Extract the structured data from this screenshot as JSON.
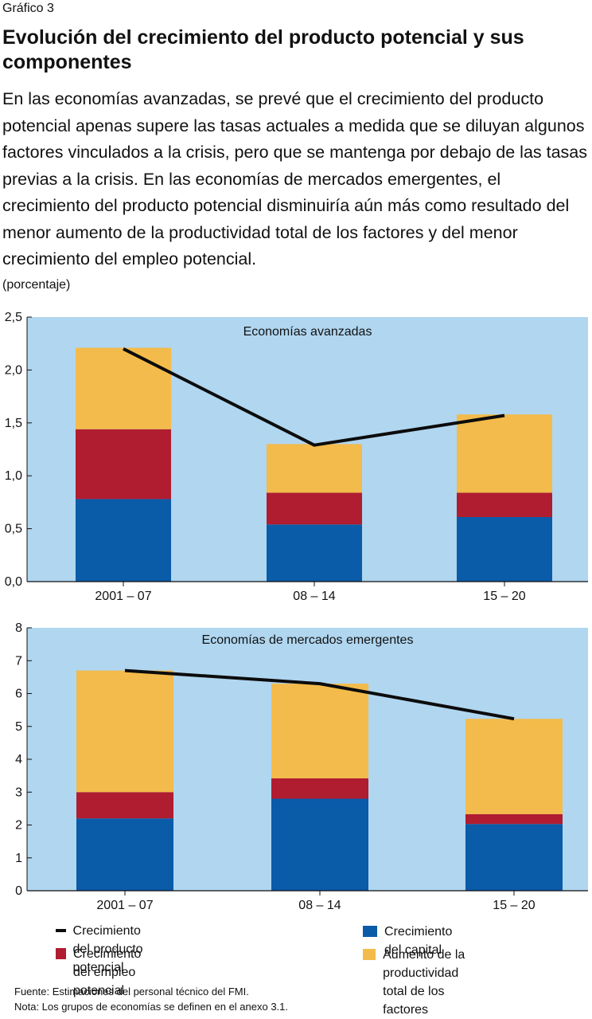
{
  "figure_label": "Gráfico 3",
  "title": "Evolución del crecimiento del producto potencial y sus componentes",
  "description": "En las economías avanzadas, se prevé que el crecimiento del producto potencial apenas supere las tasas actuales a medida que se diluyan algunos factores vinculados a la crisis, pero que se mantenga por debajo de las tasas previas a la crisis. En las economías de mercados emergentes, el crecimiento del producto potencial disminuiría aún más como resultado del menor aumento de la productividad total de los factores y del menor crecimiento del empleo potencial.",
  "unit": "(porcentaje)",
  "colors": {
    "background": "#b0d6f0",
    "capital": "#0a5ba8",
    "employment": "#b01c30",
    "tfp": "#f3bb4b",
    "potential": "#0c0c0c"
  },
  "legend": {
    "potential": "Crecimiento del producto potencial",
    "employment": "Crecimiento del empleo potencial",
    "capital": "Crecimiento del capital",
    "tfp_line1": "Aumento de la productividad",
    "tfp_line2": "total de los factores"
  },
  "notes": {
    "source": "Fuente: Estimaciones del personal técnico del FMI.",
    "note": "Nota: Los grupos de economías se definen en el anexo 3.1."
  },
  "chart_data": [
    {
      "type": "bar",
      "stacked": true,
      "title": "Economías avanzadas",
      "categories": [
        "2001 – 07",
        "08 – 14",
        "15 – 20"
      ],
      "ylim": [
        0,
        2.5
      ],
      "yticks": [
        "0,0",
        "0,5",
        "1,0",
        "1,5",
        "2,0",
        "2,5"
      ],
      "series": [
        {
          "name": "Crecimiento del capital",
          "values": [
            0.78,
            0.54,
            0.61
          ]
        },
        {
          "name": "Crecimiento del empleo potencial",
          "values": [
            0.66,
            0.3,
            0.23
          ]
        },
        {
          "name": "Aumento de la productividad total de los factores",
          "values": [
            0.77,
            0.46,
            0.74
          ]
        }
      ],
      "line": {
        "name": "Crecimiento del producto potencial",
        "values": [
          2.2,
          1.29,
          1.57
        ]
      }
    },
    {
      "type": "bar",
      "stacked": true,
      "title": "Economías de mercados emergentes",
      "categories": [
        "2001 – 07",
        "08 – 14",
        "15 – 20"
      ],
      "ylim": [
        0,
        8
      ],
      "yticks": [
        "0",
        "1",
        "2",
        "3",
        "4",
        "5",
        "6",
        "7",
        "8"
      ],
      "series": [
        {
          "name": "Crecimiento del capital",
          "values": [
            2.2,
            2.8,
            2.03
          ]
        },
        {
          "name": "Crecimiento del empleo potencial",
          "values": [
            0.8,
            0.62,
            0.3
          ]
        },
        {
          "name": "Aumento de la productividad total de los factores",
          "values": [
            3.7,
            2.88,
            2.9
          ]
        }
      ],
      "line": {
        "name": "Crecimiento del producto potencial",
        "values": [
          6.7,
          6.3,
          5.23
        ]
      }
    }
  ]
}
